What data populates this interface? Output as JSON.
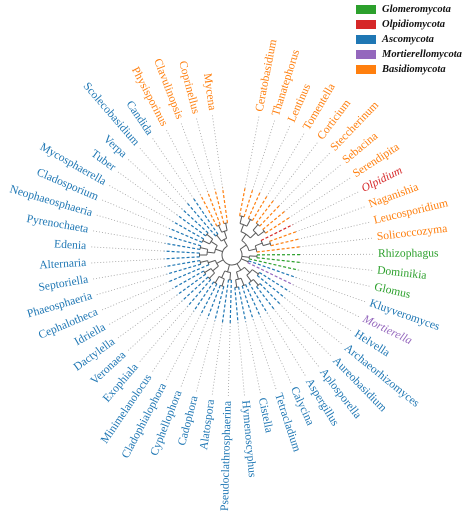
{
  "legend": {
    "items": [
      {
        "label": "Glomeromycota",
        "color": "#2ca02c"
      },
      {
        "label": "Olpidiomycota",
        "color": "#d62728"
      },
      {
        "label": "Ascomycota",
        "color": "#1f77b4"
      },
      {
        "label": "Mortierellomycota",
        "color": "#9467bd"
      },
      {
        "label": "Basidiomycota",
        "color": "#ff7f0e"
      }
    ]
  },
  "colors": {
    "Glomeromycota": "#2ca02c",
    "Olpidiomycota": "#d62728",
    "Ascomycota": "#1f77b4",
    "Mortierellomycota": "#9467bd",
    "Basidiomycota": "#ff7f0e",
    "branch": "#5a5a5a",
    "guide": "#a0a0a0"
  },
  "tips": [
    {
      "label": "Ceratobasidium",
      "group": "Basidiomycota"
    },
    {
      "label": "Thanatephorus",
      "group": "Basidiomycota"
    },
    {
      "label": "Lentinus",
      "group": "Basidiomycota"
    },
    {
      "label": "Tomentella",
      "group": "Basidiomycota"
    },
    {
      "label": "Corticium",
      "group": "Basidiomycota"
    },
    {
      "label": "Steccherinum",
      "group": "Basidiomycota"
    },
    {
      "label": "Sebacina",
      "group": "Basidiomycota"
    },
    {
      "label": "Serendipita",
      "group": "Basidiomycota"
    },
    {
      "label": "Olpidium",
      "group": "Olpidiomycota"
    },
    {
      "label": "Naganishia",
      "group": "Basidiomycota"
    },
    {
      "label": "Leucosporidium",
      "group": "Basidiomycota"
    },
    {
      "label": "Solicoccozyma",
      "group": "Basidiomycota"
    },
    {
      "label": "Rhizophagus",
      "group": "Glomeromycota"
    },
    {
      "label": "Dominikia",
      "group": "Glomeromycota"
    },
    {
      "label": "Glomus",
      "group": "Glomeromycota"
    },
    {
      "label": "Kluyveromyces",
      "group": "Ascomycota"
    },
    {
      "label": "Mortierella",
      "group": "Mortierellomycota"
    },
    {
      "label": "Helvella",
      "group": "Ascomycota"
    },
    {
      "label": "Archaeorhizomyces",
      "group": "Ascomycota"
    },
    {
      "label": "Aureobasidium",
      "group": "Ascomycota"
    },
    {
      "label": "Aplosporella",
      "group": "Ascomycota"
    },
    {
      "label": "Aspergillus",
      "group": "Ascomycota"
    },
    {
      "label": "Calycina",
      "group": "Ascomycota"
    },
    {
      "label": "Tetracladium",
      "group": "Ascomycota"
    },
    {
      "label": "Cistella",
      "group": "Ascomycota"
    },
    {
      "label": "Hymenoscyphus",
      "group": "Ascomycota"
    },
    {
      "label": "Pseudoclathrosphaerina",
      "group": "Ascomycota"
    },
    {
      "label": "Alatospora",
      "group": "Ascomycota"
    },
    {
      "label": "Cadophora",
      "group": "Ascomycota"
    },
    {
      "label": "Cyphellophora",
      "group": "Ascomycota"
    },
    {
      "label": "Cladophialophora",
      "group": "Ascomycota"
    },
    {
      "label": "Minimelanolocus",
      "group": "Ascomycota"
    },
    {
      "label": "Exophiala",
      "group": "Ascomycota"
    },
    {
      "label": "Veronaea",
      "group": "Ascomycota"
    },
    {
      "label": "Dactylella",
      "group": "Ascomycota"
    },
    {
      "label": "Idriella",
      "group": "Ascomycota"
    },
    {
      "label": "Cephalotheca",
      "group": "Ascomycota"
    },
    {
      "label": "Phaeosphaeria",
      "group": "Ascomycota"
    },
    {
      "label": "Septoriella",
      "group": "Ascomycota"
    },
    {
      "label": "Alternaria",
      "group": "Ascomycota"
    },
    {
      "label": "Edenia",
      "group": "Ascomycota"
    },
    {
      "label": "Pyrenochaeta",
      "group": "Ascomycota"
    },
    {
      "label": "Neophaeosphaeria",
      "group": "Ascomycota"
    },
    {
      "label": "Cladosporium",
      "group": "Ascomycota"
    },
    {
      "label": "Mycosphaerella",
      "group": "Ascomycota"
    },
    {
      "label": "Tuber",
      "group": "Ascomycota"
    },
    {
      "label": "Verpa",
      "group": "Ascomycota"
    },
    {
      "label": "Scolecobasidium",
      "group": "Ascomycota"
    },
    {
      "label": "Candida",
      "group": "Ascomycota"
    },
    {
      "label": "Physisporinus",
      "group": "Basidiomycota"
    },
    {
      "label": "Clavulinopsis",
      "group": "Basidiomycota"
    },
    {
      "label": "Coprinellus",
      "group": "Basidiomycota"
    },
    {
      "label": "Mycena",
      "group": "Basidiomycota"
    }
  ]
}
